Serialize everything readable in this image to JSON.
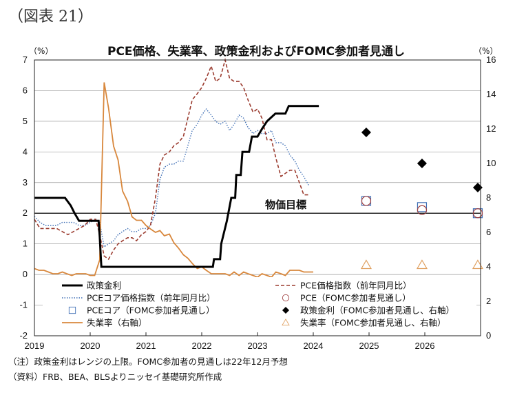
{
  "figure_label": "（図表 21）",
  "notes": {
    "note1": "（注）政策金利はレンジの上限。FOMC参加者の見通しは22年12月予想",
    "note2": "（資料）FRB、BEA、BLSよりニッセイ基礎研究所作成"
  },
  "chart_data": {
    "type": "line",
    "title": "PCE価格、失業率、政策金利およびFOMC参加者見通し",
    "left_unit": "（%）",
    "right_unit": "（%）",
    "xlabel": "",
    "ylim_left": [
      -2,
      7
    ],
    "ylim_right": [
      0,
      16
    ],
    "left_ticks": [
      "-2",
      "-1",
      "0",
      "1",
      "2",
      "3",
      "4",
      "5",
      "6",
      "7"
    ],
    "right_ticks": [
      "0",
      "2",
      "4",
      "6",
      "8",
      "10",
      "12",
      "14",
      "16"
    ],
    "x_ticks": [
      "2019",
      "2020",
      "2021",
      "2022",
      "2023",
      "2024",
      "2025",
      "2026"
    ],
    "xlim": [
      2019.0,
      2027.0
    ],
    "grid": "horizontal",
    "reference_line": {
      "value": 2.0,
      "label": "物価目標"
    },
    "colors": {
      "policy_rate": "#000000",
      "pce": "#9b3b2f",
      "core_pce": "#3f6fb5",
      "unemployment": "#d8873c",
      "proj_policy": "#000000",
      "proj_pce": "#a04040",
      "proj_core": "#3f6fb5",
      "proj_unemp": "#e0a060"
    },
    "legend": [
      {
        "key": "policy_rate",
        "label": "政策金利",
        "marker": "line-solid"
      },
      {
        "key": "pce",
        "label": "PCE価格指数（前年同月比）",
        "marker": "line-dashed"
      },
      {
        "key": "core_pce",
        "label": "PCEコア価格指数（前年同月比）",
        "marker": "line-dotted"
      },
      {
        "key": "proj_pce",
        "label": "PCE（FOMC参加者見通し）",
        "marker": "circle"
      },
      {
        "key": "proj_core",
        "label": "PCEコア（FOMC参加者見通し）",
        "marker": "square"
      },
      {
        "key": "proj_policy",
        "label": "政策金利（FOMC参加者見通し、右軸）",
        "marker": "diamond"
      },
      {
        "key": "unemployment",
        "label": "失業率（右軸）",
        "marker": "line-solid"
      },
      {
        "key": "proj_unemp",
        "label": "失業率（FOMC参加者見通し、右軸）",
        "marker": "triangle"
      }
    ],
    "series": {
      "policy_rate": {
        "axis": "left",
        "points": [
          [
            2019.0,
            2.5
          ],
          [
            2019.55,
            2.5
          ],
          [
            2019.65,
            2.25
          ],
          [
            2019.72,
            2.0
          ],
          [
            2019.8,
            1.75
          ],
          [
            2020.15,
            1.75
          ],
          [
            2020.17,
            1.25
          ],
          [
            2020.2,
            0.25
          ],
          [
            2022.2,
            0.25
          ],
          [
            2022.22,
            0.5
          ],
          [
            2022.33,
            0.5
          ],
          [
            2022.35,
            1.0
          ],
          [
            2022.45,
            1.75
          ],
          [
            2022.53,
            2.5
          ],
          [
            2022.6,
            2.5
          ],
          [
            2022.62,
            3.25
          ],
          [
            2022.7,
            3.25
          ],
          [
            2022.73,
            4.0
          ],
          [
            2022.85,
            4.0
          ],
          [
            2022.9,
            4.5
          ],
          [
            2023.0,
            4.5
          ],
          [
            2023.08,
            4.75
          ],
          [
            2023.17,
            5.0
          ],
          [
            2023.32,
            5.25
          ],
          [
            2023.5,
            5.25
          ],
          [
            2023.56,
            5.5
          ],
          [
            2024.1,
            5.5
          ]
        ]
      },
      "pce": {
        "axis": "left",
        "points": [
          [
            2019.0,
            1.8
          ],
          [
            2019.1,
            1.5
          ],
          [
            2019.2,
            1.5
          ],
          [
            2019.3,
            1.5
          ],
          [
            2019.4,
            1.5
          ],
          [
            2019.5,
            1.4
          ],
          [
            2019.6,
            1.3
          ],
          [
            2019.7,
            1.4
          ],
          [
            2019.8,
            1.5
          ],
          [
            2019.9,
            1.6
          ],
          [
            2020.0,
            1.8
          ],
          [
            2020.1,
            1.8
          ],
          [
            2020.17,
            1.3
          ],
          [
            2020.25,
            0.6
          ],
          [
            2020.33,
            0.5
          ],
          [
            2020.42,
            0.8
          ],
          [
            2020.5,
            1.0
          ],
          [
            2020.58,
            1.1
          ],
          [
            2020.67,
            1.2
          ],
          [
            2020.75,
            1.2
          ],
          [
            2020.83,
            1.1
          ],
          [
            2020.92,
            1.3
          ],
          [
            2021.0,
            1.4
          ],
          [
            2021.08,
            1.6
          ],
          [
            2021.17,
            2.5
          ],
          [
            2021.25,
            3.6
          ],
          [
            2021.33,
            3.9
          ],
          [
            2021.42,
            4.0
          ],
          [
            2021.5,
            4.2
          ],
          [
            2021.58,
            4.3
          ],
          [
            2021.67,
            4.5
          ],
          [
            2021.75,
            5.1
          ],
          [
            2021.83,
            5.7
          ],
          [
            2021.92,
            5.9
          ],
          [
            2022.0,
            6.1
          ],
          [
            2022.08,
            6.4
          ],
          [
            2022.17,
            6.8
          ],
          [
            2022.25,
            6.3
          ],
          [
            2022.33,
            6.4
          ],
          [
            2022.42,
            7.0
          ],
          [
            2022.5,
            6.4
          ],
          [
            2022.58,
            6.3
          ],
          [
            2022.67,
            6.3
          ],
          [
            2022.75,
            6.1
          ],
          [
            2022.83,
            5.7
          ],
          [
            2022.92,
            5.3
          ],
          [
            2023.0,
            5.4
          ],
          [
            2023.08,
            5.1
          ],
          [
            2023.17,
            4.4
          ],
          [
            2023.25,
            4.4
          ],
          [
            2023.33,
            3.8
          ],
          [
            2023.42,
            3.2
          ],
          [
            2023.5,
            3.3
          ],
          [
            2023.58,
            3.4
          ],
          [
            2023.67,
            3.4
          ],
          [
            2023.75,
            3.0
          ],
          [
            2023.83,
            2.6
          ],
          [
            2023.92,
            2.6
          ]
        ]
      },
      "core_pce": {
        "axis": "left",
        "points": [
          [
            2019.0,
            1.9
          ],
          [
            2019.1,
            1.7
          ],
          [
            2019.2,
            1.6
          ],
          [
            2019.3,
            1.6
          ],
          [
            2019.4,
            1.6
          ],
          [
            2019.5,
            1.7
          ],
          [
            2019.6,
            1.7
          ],
          [
            2019.7,
            1.7
          ],
          [
            2019.8,
            1.6
          ],
          [
            2019.9,
            1.6
          ],
          [
            2020.0,
            1.7
          ],
          [
            2020.1,
            1.8
          ],
          [
            2020.17,
            1.7
          ],
          [
            2020.25,
            0.9
          ],
          [
            2020.33,
            1.0
          ],
          [
            2020.42,
            1.1
          ],
          [
            2020.5,
            1.3
          ],
          [
            2020.58,
            1.4
          ],
          [
            2020.67,
            1.5
          ],
          [
            2020.75,
            1.4
          ],
          [
            2020.83,
            1.4
          ],
          [
            2020.92,
            1.5
          ],
          [
            2021.0,
            1.5
          ],
          [
            2021.08,
            1.6
          ],
          [
            2021.17,
            2.0
          ],
          [
            2021.25,
            3.1
          ],
          [
            2021.33,
            3.5
          ],
          [
            2021.42,
            3.6
          ],
          [
            2021.5,
            3.6
          ],
          [
            2021.58,
            3.7
          ],
          [
            2021.67,
            3.7
          ],
          [
            2021.75,
            4.2
          ],
          [
            2021.83,
            4.7
          ],
          [
            2021.92,
            4.9
          ],
          [
            2022.0,
            5.2
          ],
          [
            2022.08,
            5.4
          ],
          [
            2022.17,
            5.2
          ],
          [
            2022.25,
            5.0
          ],
          [
            2022.33,
            4.9
          ],
          [
            2022.42,
            5.0
          ],
          [
            2022.5,
            4.7
          ],
          [
            2022.58,
            4.9
          ],
          [
            2022.67,
            5.2
          ],
          [
            2022.75,
            5.1
          ],
          [
            2022.83,
            4.8
          ],
          [
            2022.92,
            4.6
          ],
          [
            2023.0,
            4.7
          ],
          [
            2023.08,
            4.6
          ],
          [
            2023.17,
            4.6
          ],
          [
            2023.25,
            4.7
          ],
          [
            2023.33,
            4.3
          ],
          [
            2023.42,
            4.3
          ],
          [
            2023.5,
            4.2
          ],
          [
            2023.58,
            3.9
          ],
          [
            2023.67,
            3.7
          ],
          [
            2023.75,
            3.4
          ],
          [
            2023.83,
            3.2
          ],
          [
            2023.92,
            2.9
          ]
        ]
      },
      "unemployment": {
        "axis": "right",
        "points": [
          [
            2019.0,
            3.9
          ],
          [
            2019.08,
            3.8
          ],
          [
            2019.17,
            3.8
          ],
          [
            2019.25,
            3.7
          ],
          [
            2019.33,
            3.6
          ],
          [
            2019.42,
            3.6
          ],
          [
            2019.5,
            3.7
          ],
          [
            2019.58,
            3.6
          ],
          [
            2019.67,
            3.5
          ],
          [
            2019.75,
            3.6
          ],
          [
            2019.83,
            3.6
          ],
          [
            2019.92,
            3.6
          ],
          [
            2020.0,
            3.5
          ],
          [
            2020.08,
            3.5
          ],
          [
            2020.17,
            4.4
          ],
          [
            2020.25,
            14.7
          ],
          [
            2020.33,
            13.2
          ],
          [
            2020.42,
            11.0
          ],
          [
            2020.5,
            10.2
          ],
          [
            2020.58,
            8.4
          ],
          [
            2020.67,
            7.8
          ],
          [
            2020.75,
            6.9
          ],
          [
            2020.83,
            6.7
          ],
          [
            2020.92,
            6.7
          ],
          [
            2021.0,
            6.4
          ],
          [
            2021.08,
            6.2
          ],
          [
            2021.17,
            6.0
          ],
          [
            2021.25,
            6.1
          ],
          [
            2021.33,
            5.8
          ],
          [
            2021.42,
            5.9
          ],
          [
            2021.5,
            5.4
          ],
          [
            2021.58,
            5.1
          ],
          [
            2021.67,
            4.7
          ],
          [
            2021.75,
            4.5
          ],
          [
            2021.83,
            4.2
          ],
          [
            2021.92,
            3.9
          ],
          [
            2022.0,
            4.0
          ],
          [
            2022.08,
            3.8
          ],
          [
            2022.17,
            3.6
          ],
          [
            2022.25,
            3.6
          ],
          [
            2022.33,
            3.6
          ],
          [
            2022.42,
            3.6
          ],
          [
            2022.5,
            3.5
          ],
          [
            2022.58,
            3.7
          ],
          [
            2022.67,
            3.5
          ],
          [
            2022.75,
            3.7
          ],
          [
            2022.83,
            3.6
          ],
          [
            2022.92,
            3.5
          ],
          [
            2023.0,
            3.4
          ],
          [
            2023.08,
            3.6
          ],
          [
            2023.17,
            3.5
          ],
          [
            2023.25,
            3.4
          ],
          [
            2023.33,
            3.7
          ],
          [
            2023.42,
            3.6
          ],
          [
            2023.5,
            3.5
          ],
          [
            2023.58,
            3.8
          ],
          [
            2023.67,
            3.8
          ],
          [
            2023.75,
            3.8
          ],
          [
            2023.83,
            3.7
          ],
          [
            2023.92,
            3.7
          ],
          [
            2024.0,
            3.7
          ]
        ]
      }
    },
    "projections": {
      "proj_policy": {
        "axis": "right",
        "marker": "diamond",
        "points": [
          [
            2024.95,
            11.8
          ],
          [
            2025.95,
            10.0
          ],
          [
            2026.95,
            8.6
          ]
        ]
      },
      "proj_pce": {
        "axis": "left",
        "marker": "circle",
        "points": [
          [
            2024.95,
            2.4
          ],
          [
            2025.95,
            2.1
          ],
          [
            2026.95,
            2.0
          ]
        ]
      },
      "proj_core": {
        "axis": "left",
        "marker": "square",
        "points": [
          [
            2024.95,
            2.4
          ],
          [
            2025.95,
            2.2
          ],
          [
            2026.95,
            2.0
          ]
        ]
      },
      "proj_unemp": {
        "axis": "right",
        "marker": "triangle",
        "points": [
          [
            2024.95,
            4.1
          ],
          [
            2025.95,
            4.1
          ],
          [
            2026.95,
            4.1
          ]
        ]
      }
    }
  }
}
